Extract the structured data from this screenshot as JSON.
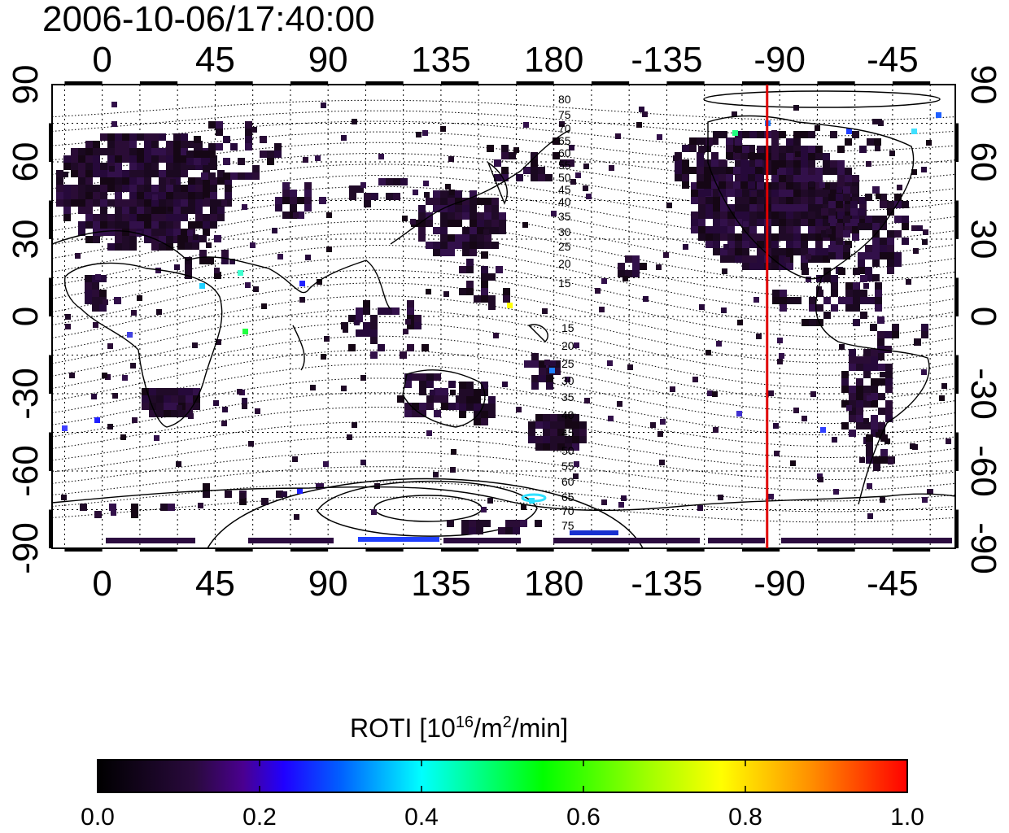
{
  "title": "2006-10-06/17:40:00",
  "map": {
    "lon_ticks": [
      "0",
      "45",
      "90",
      "135",
      "180",
      "-135",
      "-90",
      "-45"
    ],
    "lat_ticks": [
      "90",
      "60",
      "30",
      "0",
      "-30",
      "-60",
      "-90"
    ],
    "mlat_labels_north": [
      "80",
      "75",
      "70",
      "65",
      "60",
      "55",
      "50",
      "45",
      "40",
      "35",
      "30",
      "25",
      "20",
      "15"
    ],
    "mlat_labels_south": [
      "15",
      "20",
      "25",
      "30",
      "35",
      "40",
      "45",
      "50",
      "55",
      "60",
      "65",
      "70",
      "75"
    ],
    "terminator_longitude": -95,
    "terminator_color": "#e00000"
  },
  "colorbar": {
    "label_main": "ROTI  [10",
    "label_sup1": "16",
    "label_mid": "/m",
    "label_sup2": "2",
    "label_end": "/min]",
    "ticks": [
      "0.0",
      "0.2",
      "0.4",
      "0.6",
      "0.8",
      "1.0"
    ],
    "range": [
      0.0,
      1.0
    ],
    "colors": [
      "#000000",
      "#3a0a5a",
      "#4a00a0",
      "#0000ff",
      "#00ffff",
      "#00ff00",
      "#ffff00",
      "#ff8000",
      "#ff0000"
    ]
  }
}
